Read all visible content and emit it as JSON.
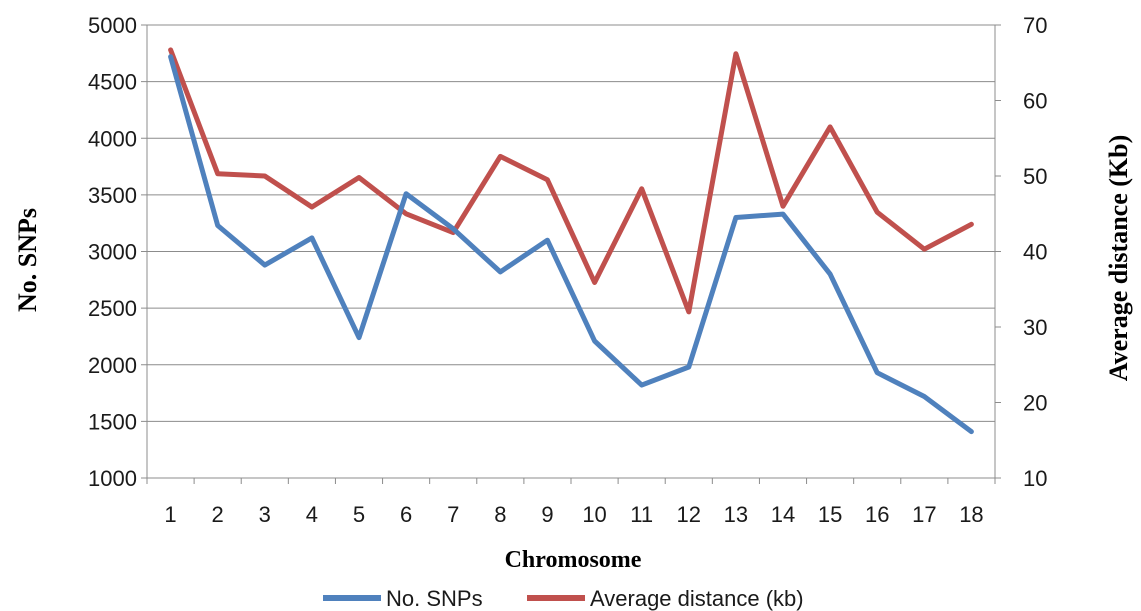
{
  "chart_data": {
    "type": "line",
    "xlabel": "Chromosome",
    "ylabel": "No. SNPs",
    "y2label": "Average distance (Kb)",
    "categories": [
      "1",
      "2",
      "3",
      "4",
      "5",
      "6",
      "7",
      "8",
      "9",
      "10",
      "11",
      "12",
      "13",
      "14",
      "15",
      "16",
      "17",
      "18"
    ],
    "ylim": [
      1000,
      5000
    ],
    "y_ticks": [
      "1000",
      "1500",
      "2000",
      "2500",
      "3000",
      "3500",
      "4000",
      "4500",
      "5000"
    ],
    "y2lim": [
      10,
      70
    ],
    "y2_ticks": [
      "10",
      "20",
      "30",
      "40",
      "50",
      "60",
      "70"
    ],
    "grid": "horizontal",
    "legend_position": "bottom",
    "series": [
      {
        "name": "No. SNPs",
        "axis": "left",
        "color": "#4f81bd",
        "values": [
          4720,
          3230,
          2880,
          3120,
          2240,
          3510,
          3200,
          2820,
          3100,
          2210,
          1820,
          1980,
          3300,
          3330,
          2800,
          1930,
          1720,
          1410
        ]
      },
      {
        "name": "Average distance (kb)",
        "axis": "right",
        "color": "#c0504d",
        "values": [
          66.7,
          50.3,
          50.0,
          45.9,
          49.8,
          45.0,
          42.5,
          52.6,
          49.5,
          35.9,
          48.3,
          32.0,
          66.2,
          46.0,
          56.5,
          45.2,
          40.3,
          43.6
        ]
      }
    ]
  }
}
